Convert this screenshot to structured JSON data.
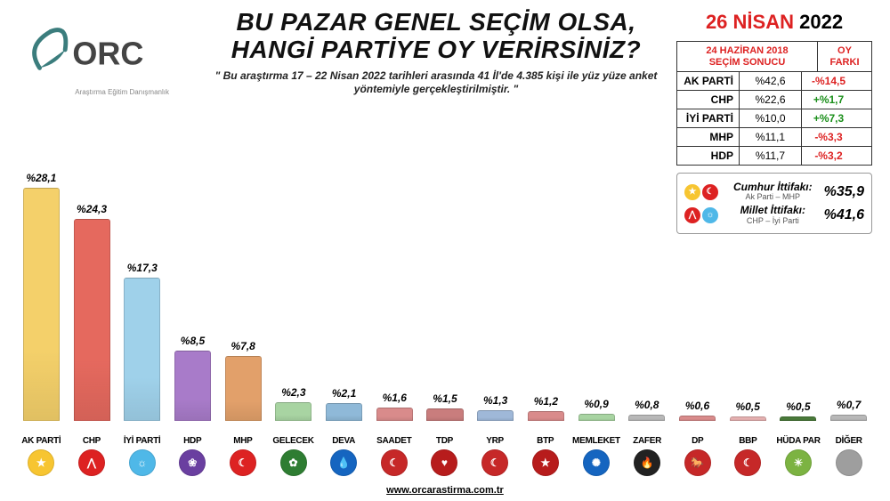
{
  "logo": {
    "main": "ORC",
    "sub": "Araştırma Eğitim Danışmanlık",
    "color": "#3b7d7d"
  },
  "headline": {
    "line1": "BU PAZAR GENEL SEÇİM OLSA,",
    "line2": "HANGİ PARTİYE OY VERİRSİNİZ?",
    "color": "#111111",
    "fontsize": 28
  },
  "subhead": "\" Bu araştırma 17 – 22 Nisan 2022 tarihleri arasında 41 İl'de 4.385 kişi ile yüz yüze anket yöntemiyle gerçekleştirilmiştir. \"",
  "date": {
    "day_month": "26 NİSAN",
    "year": "2022",
    "accent": "#d62222"
  },
  "comparison": {
    "header_left_line1": "24 HAZİRAN 2018",
    "header_left_line2": "SEÇİM SONUCU",
    "header_right_line1": "OY",
    "header_right_line2": "FARKI",
    "rows": [
      {
        "name": "AK PARTİ",
        "value": "%42,6",
        "diff": "-%14,5",
        "pos": false
      },
      {
        "name": "CHP",
        "value": "%22,6",
        "diff": "+%1,7",
        "pos": true
      },
      {
        "name": "İYİ PARTİ",
        "value": "%10,0",
        "diff": "+%7,3",
        "pos": true
      },
      {
        "name": "MHP",
        "value": "%11,1",
        "diff": "-%3,3",
        "pos": false
      },
      {
        "name": "HDP",
        "value": "%11,7",
        "diff": "-%3,2",
        "pos": false
      }
    ]
  },
  "alliances": [
    {
      "title": "Cumhur İttifakı:",
      "sub": "Ak Parti – MHP",
      "value": "%35,9",
      "icons": [
        {
          "bg": "#f7c531",
          "txt": "★"
        },
        {
          "bg": "#d22",
          "txt": "☾"
        }
      ]
    },
    {
      "title": "Millet İttifakı:",
      "sub": "CHP – İyi Parti",
      "value": "%41,6",
      "icons": [
        {
          "bg": "#d22",
          "txt": "⋀"
        },
        {
          "bg": "#4fb8e8",
          "txt": "☼"
        }
      ]
    }
  ],
  "chart": {
    "type": "bar",
    "ymax": 30,
    "label_fontsize": 12,
    "bar_width_pct": 78,
    "bars": [
      {
        "party": "AK PARTİ",
        "label": "%28,1",
        "value": 28.1,
        "color": "#f4d06a",
        "icon_bg": "#f7c531",
        "icon_txt": "★"
      },
      {
        "party": "CHP",
        "label": "%24,3",
        "value": 24.3,
        "color": "#e5695e",
        "icon_bg": "#d22",
        "icon_txt": "⋀"
      },
      {
        "party": "İYİ PARTİ",
        "label": "%17,3",
        "value": 17.3,
        "color": "#9fd1ea",
        "icon_bg": "#4fb8e8",
        "icon_txt": "☼"
      },
      {
        "party": "HDP",
        "label": "%8,5",
        "value": 8.5,
        "color": "#a87bc9",
        "icon_bg": "#6a3fa0",
        "icon_txt": "❀"
      },
      {
        "party": "MHP",
        "label": "%7,8",
        "value": 7.8,
        "color": "#e2a06a",
        "icon_bg": "#d22",
        "icon_txt": "☾"
      },
      {
        "party": "GELECEK",
        "label": "%2,3",
        "value": 2.3,
        "color": "#a8d4a2",
        "icon_bg": "#2e7d32",
        "icon_txt": "✿"
      },
      {
        "party": "DEVA",
        "label": "%2,1",
        "value": 2.1,
        "color": "#8fb9d8",
        "icon_bg": "#1565c0",
        "icon_txt": "💧"
      },
      {
        "party": "SAADET",
        "label": "%1,6",
        "value": 1.6,
        "color": "#d98b8b",
        "icon_bg": "#c62828",
        "icon_txt": "☾"
      },
      {
        "party": "TDP",
        "label": "%1,5",
        "value": 1.5,
        "color": "#c97d7d",
        "icon_bg": "#b71c1c",
        "icon_txt": "♥"
      },
      {
        "party": "YRP",
        "label": "%1,3",
        "value": 1.3,
        "color": "#9fb8d8",
        "icon_bg": "#c62828",
        "icon_txt": "☾"
      },
      {
        "party": "BTP",
        "label": "%1,2",
        "value": 1.2,
        "color": "#d98b8b",
        "icon_bg": "#b71c1c",
        "icon_txt": "★"
      },
      {
        "party": "MEMLEKET",
        "label": "%0,9",
        "value": 0.9,
        "color": "#a8d4a2",
        "icon_bg": "#1565c0",
        "icon_txt": "✺"
      },
      {
        "party": "ZAFER",
        "label": "%0,8",
        "value": 0.8,
        "color": "#b8b8b8",
        "icon_bg": "#222",
        "icon_txt": "🔥"
      },
      {
        "party": "DP",
        "label": "%0,6",
        "value": 0.6,
        "color": "#d98b8b",
        "icon_bg": "#c62828",
        "icon_txt": "🐎"
      },
      {
        "party": "BBP",
        "label": "%0,5",
        "value": 0.5,
        "color": "#e5b0b0",
        "icon_bg": "#c62828",
        "icon_txt": "☾"
      },
      {
        "party": "HÜDA PAR",
        "label": "%0,5",
        "value": 0.5,
        "color": "#4a7a3a",
        "icon_bg": "#7cb342",
        "icon_txt": "☀"
      },
      {
        "party": "DİĞER",
        "label": "%0,7",
        "value": 0.7,
        "color": "#b8b8b8",
        "icon_bg": "#9e9e9e",
        "icon_txt": ""
      }
    ]
  },
  "footer": "www.orcarastirma.com.tr"
}
